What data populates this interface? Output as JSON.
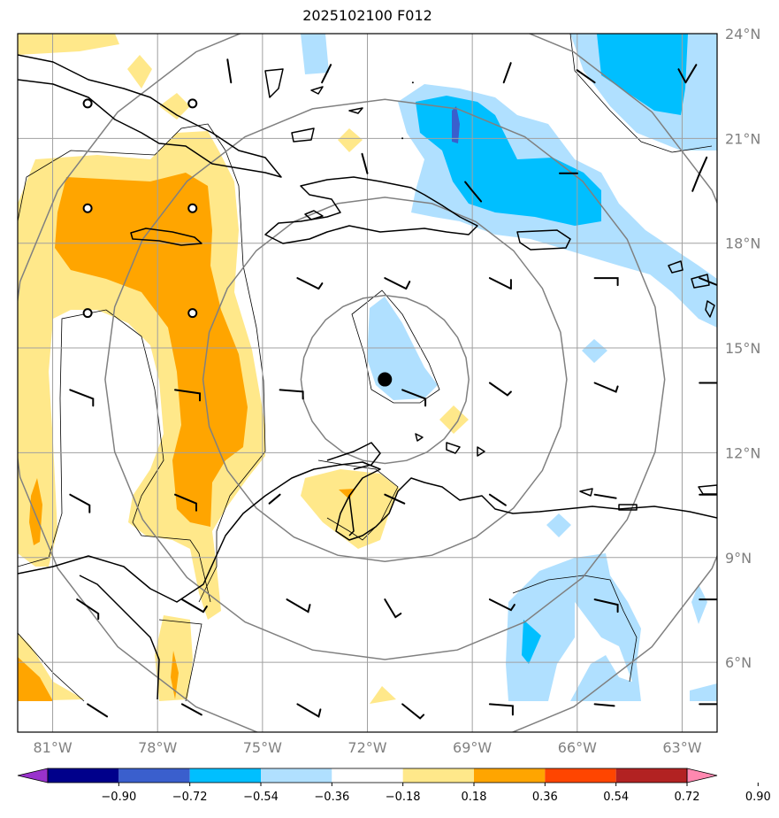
{
  "title": "2025102100 F012",
  "map": {
    "lon_range": [
      -82.0,
      -62.0
    ],
    "lat_range": [
      4.0,
      24.0
    ],
    "lon_ticks": [
      {
        "value": -81,
        "label": "81°W"
      },
      {
        "value": -78,
        "label": "78°W"
      },
      {
        "value": -75,
        "label": "75°W"
      },
      {
        "value": -72,
        "label": "72°W"
      },
      {
        "value": -69,
        "label": "69°W"
      },
      {
        "value": -66,
        "label": "66°W"
      },
      {
        "value": -63,
        "label": "63°W"
      }
    ],
    "lat_ticks": [
      {
        "value": 24,
        "label": "24°N"
      },
      {
        "value": 21,
        "label": "21°N"
      },
      {
        "value": 18,
        "label": "18°N"
      },
      {
        "value": 15,
        "label": "15°N"
      },
      {
        "value": 12,
        "label": "12°N"
      },
      {
        "value": 9,
        "label": "9°N"
      },
      {
        "value": 6,
        "label": "6°N"
      }
    ],
    "center": {
      "lon": -71.5,
      "lat": 14.1
    },
    "range_rings_deg": [
      2.4,
      5.2,
      8.0,
      10.8
    ],
    "colors": {
      "neg_090": "#9932CC",
      "neg_072": "#00008B",
      "neg_054": "#3A5FCD",
      "neg_036": "#00BFFF",
      "neg_018": "#B0E0FF",
      "zero": "#FFFFFF",
      "pos_018": "#FFE88A",
      "pos_036": "#FFA500",
      "pos_054": "#FF4500",
      "pos_072": "#B22222",
      "pos_090": "#FF88B0",
      "grid": "#A0A0A0",
      "ring": "#808080",
      "coast": "#000000"
    }
  },
  "colorbar": {
    "levels": [
      "−0.90",
      "−0.72",
      "−0.54",
      "−0.36",
      "−0.18",
      "0.18",
      "0.36",
      "0.54",
      "0.72",
      "0.90"
    ],
    "colors": [
      "#9932CC",
      "#00008B",
      "#3A5FCD",
      "#00BFFF",
      "#B0E0FF",
      "#FFFFFF",
      "#FFE88A",
      "#FFA500",
      "#FF4500",
      "#B22222",
      "#FF88B0"
    ]
  }
}
